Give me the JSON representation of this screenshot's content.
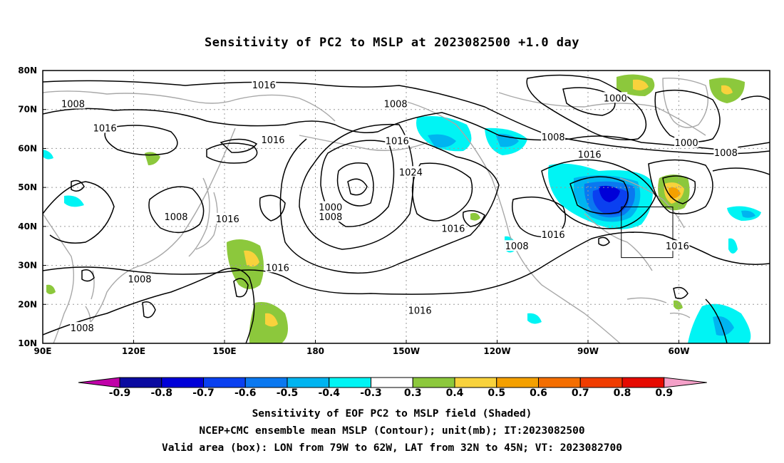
{
  "title": "Sensitivity of PC2 to MSLP at 2023082500 +1.0 day",
  "map": {
    "lat_labels": [
      "80N",
      "70N",
      "60N",
      "50N",
      "40N",
      "30N",
      "20N",
      "10N"
    ],
    "lon_labels": [
      "90E",
      "120E",
      "150E",
      "180",
      "150W",
      "120W",
      "90W",
      "60W"
    ],
    "contour_labels": [
      {
        "text": "1016",
        "lon": 163.0,
        "lat": 76.3
      },
      {
        "text": "1008",
        "lon": 100.0,
        "lat": 71.5
      },
      {
        "text": "1016",
        "lon": 110.5,
        "lat": 65.3
      },
      {
        "text": "1016",
        "lon": 166.0,
        "lat": 62.3
      },
      {
        "text": "1008",
        "lon": 206.5,
        "lat": 71.5
      },
      {
        "text": "1016",
        "lon": 207.0,
        "lat": 62.0
      },
      {
        "text": "1024",
        "lon": 211.5,
        "lat": 54.0
      },
      {
        "text": "1000",
        "lon": 279.0,
        "lat": 73.0
      },
      {
        "text": "1008",
        "lon": 258.5,
        "lat": 63.0
      },
      {
        "text": "1016",
        "lon": 270.5,
        "lat": 58.5
      },
      {
        "text": "1000",
        "lon": 302.5,
        "lat": 61.5
      },
      {
        "text": "1008",
        "lon": 315.5,
        "lat": 59.0
      },
      {
        "text": "1000",
        "lon": 185.0,
        "lat": 45.0
      },
      {
        "text": "1008",
        "lon": 185.0,
        "lat": 42.5
      },
      {
        "text": "1008",
        "lon": 134.0,
        "lat": 42.5
      },
      {
        "text": "1016",
        "lon": 151.0,
        "lat": 42.0
      },
      {
        "text": "1016",
        "lon": 225.5,
        "lat": 39.5
      },
      {
        "text": "1016",
        "lon": 258.5,
        "lat": 38.0
      },
      {
        "text": "1008",
        "lon": 246.5,
        "lat": 35.0
      },
      {
        "text": "1016",
        "lon": 299.5,
        "lat": 35.0
      },
      {
        "text": "1016",
        "lon": 167.5,
        "lat": 29.5
      },
      {
        "text": "1008",
        "lon": 122.0,
        "lat": 26.5
      },
      {
        "text": "1016",
        "lon": 214.5,
        "lat": 18.5
      },
      {
        "text": "1008",
        "lon": 103.0,
        "lat": 14.0
      }
    ],
    "valid_box": {
      "lon_from_w": 79,
      "lon_to_w": 62,
      "lat_from": 32,
      "lat_to": 45
    }
  },
  "colorbar": {
    "labels": [
      "-0.9",
      "-0.8",
      "-0.7",
      "-0.6",
      "-0.5",
      "-0.4",
      "-0.3",
      "0.3",
      "0.4",
      "0.5",
      "0.6",
      "0.7",
      "0.8",
      "0.9"
    ],
    "colors": {
      "neg_end": "#c000a8",
      "pos_end": "#f4a0c8",
      "bins": [
        "#0a0aa0",
        "#0000d8",
        "#0a40f0",
        "#0a78f0",
        "#00b4f0",
        "#00f4f4",
        "#ffffff",
        "#8cc83c",
        "#f8d23c",
        "#f4a000",
        "#f46e00",
        "#f03c00",
        "#e60a00"
      ]
    }
  },
  "captions": {
    "line1": "Sensitivity of EOF PC2 to MSLP field (Shaded)",
    "line2": "NCEP+CMC ensemble mean MSLP (Contour); unit(mb); IT:2023082500",
    "line3": "Valid area (box): LON from 79W to 62W, LAT from 32N to 45N; VT: 2023082700"
  }
}
